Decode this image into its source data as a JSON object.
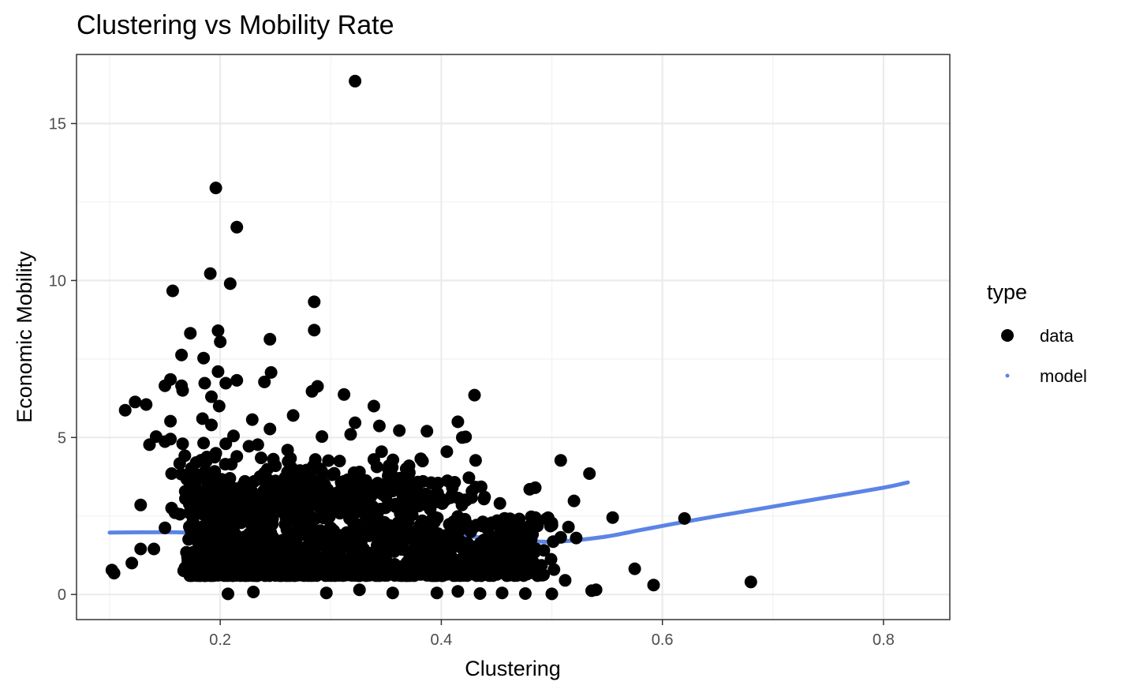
{
  "chart_data": {
    "type": "scatter",
    "title": "Clustering vs Mobility Rate",
    "xlabel": "Clustering",
    "ylabel": "Economic Mobility",
    "xlim": [
      0.07,
      0.86
    ],
    "ylim": [
      -0.8,
      17.2
    ],
    "x_ticks": [
      0.2,
      0.4,
      0.6,
      0.8
    ],
    "x_tick_labels": [
      "0.2",
      "0.4",
      "0.6",
      "0.8"
    ],
    "y_ticks": [
      0,
      5,
      10,
      15
    ],
    "y_tick_labels": [
      "0",
      "5",
      "10",
      "15"
    ],
    "grid": true,
    "legend": {
      "title": "type",
      "placement": "right",
      "entries": [
        {
          "label": "data",
          "marker": "point",
          "color": "#000000"
        },
        {
          "label": "model",
          "marker": "small-point",
          "color": "#5b84e6"
        }
      ]
    },
    "series": [
      {
        "name": "data",
        "kind": "points",
        "color": "#000000",
        "points": [
          [
            0.322,
            16.35
          ],
          [
            0.196,
            12.95
          ],
          [
            0.215,
            11.7
          ],
          [
            0.191,
            10.22
          ],
          [
            0.209,
            9.9
          ],
          [
            0.157,
            9.67
          ],
          [
            0.285,
            9.32
          ],
          [
            0.198,
            8.4
          ],
          [
            0.285,
            8.42
          ],
          [
            0.173,
            8.32
          ],
          [
            0.245,
            8.13
          ],
          [
            0.2,
            8.05
          ],
          [
            0.165,
            7.63
          ],
          [
            0.185,
            7.53
          ],
          [
            0.198,
            7.1
          ],
          [
            0.246,
            7.07
          ],
          [
            0.215,
            6.82
          ],
          [
            0.205,
            6.73
          ],
          [
            0.24,
            6.77
          ],
          [
            0.186,
            6.73
          ],
          [
            0.155,
            6.85
          ],
          [
            0.165,
            6.65
          ],
          [
            0.15,
            6.65
          ],
          [
            0.166,
            6.5
          ],
          [
            0.288,
            6.63
          ],
          [
            0.283,
            6.47
          ],
          [
            0.312,
            6.37
          ],
          [
            0.43,
            6.35
          ],
          [
            0.192,
            6.3
          ],
          [
            0.199,
            6.0
          ],
          [
            0.339,
            6.0
          ],
          [
            0.114,
            5.87
          ],
          [
            0.123,
            6.13
          ],
          [
            0.133,
            6.05
          ],
          [
            0.266,
            5.7
          ],
          [
            0.155,
            5.52
          ],
          [
            0.184,
            5.6
          ],
          [
            0.229,
            5.57
          ],
          [
            0.322,
            5.47
          ],
          [
            0.415,
            5.5
          ],
          [
            0.192,
            5.4
          ],
          [
            0.344,
            5.37
          ],
          [
            0.245,
            5.27
          ],
          [
            0.362,
            5.22
          ],
          [
            0.387,
            5.2
          ],
          [
            0.318,
            5.1
          ],
          [
            0.212,
            5.05
          ],
          [
            0.292,
            5.03
          ],
          [
            0.419,
            5.0
          ],
          [
            0.422,
            5.02
          ],
          [
            0.142,
            5.03
          ],
          [
            0.15,
            4.87
          ],
          [
            0.155,
            4.95
          ],
          [
            0.136,
            4.77
          ],
          [
            0.166,
            4.8
          ],
          [
            0.185,
            4.82
          ],
          [
            0.205,
            4.8
          ],
          [
            0.226,
            4.72
          ],
          [
            0.234,
            4.77
          ],
          [
            0.261,
            4.6
          ],
          [
            0.346,
            4.55
          ],
          [
            0.405,
            4.55
          ],
          [
            0.196,
            4.5
          ],
          [
            0.215,
            4.4
          ],
          [
            0.237,
            4.35
          ],
          [
            0.168,
            4.42
          ],
          [
            0.286,
            4.3
          ],
          [
            0.308,
            4.25
          ],
          [
            0.339,
            4.3
          ],
          [
            0.383,
            4.25
          ],
          [
            0.431,
            4.27
          ],
          [
            0.508,
            4.27
          ],
          [
            0.21,
            4.15
          ],
          [
            0.25,
            4.1
          ],
          [
            0.174,
            4.02
          ],
          [
            0.355,
            4.05
          ],
          [
            0.272,
            3.95
          ],
          [
            0.326,
            3.9
          ],
          [
            0.195,
            3.92
          ],
          [
            0.534,
            3.85
          ],
          [
            0.156,
            3.85
          ],
          [
            0.263,
            3.72
          ],
          [
            0.237,
            3.67
          ],
          [
            0.397,
            3.55
          ],
          [
            0.425,
            3.72
          ],
          [
            0.356,
            3.77
          ],
          [
            0.485,
            3.4
          ],
          [
            0.48,
            3.35
          ],
          [
            0.41,
            3.4
          ],
          [
            0.215,
            3.2
          ],
          [
            0.173,
            3.1
          ],
          [
            0.453,
            2.9
          ],
          [
            0.52,
            2.98
          ],
          [
            0.128,
            2.85
          ],
          [
            0.156,
            2.75
          ],
          [
            0.555,
            2.45
          ],
          [
            0.62,
            2.42
          ],
          [
            0.485,
            2.45
          ],
          [
            0.5,
            2.28
          ],
          [
            0.515,
            2.15
          ],
          [
            0.15,
            2.12
          ],
          [
            0.508,
            1.82
          ],
          [
            0.522,
            1.8
          ],
          [
            0.128,
            1.45
          ],
          [
            0.14,
            1.45
          ],
          [
            0.12,
            1.0
          ],
          [
            0.102,
            0.78
          ],
          [
            0.104,
            0.68
          ],
          [
            0.575,
            0.82
          ],
          [
            0.592,
            0.3
          ],
          [
            0.68,
            0.4
          ],
          [
            0.54,
            0.15
          ],
          [
            0.536,
            0.12
          ],
          [
            0.512,
            0.45
          ],
          [
            0.5,
            0.02
          ],
          [
            0.476,
            0.03
          ],
          [
            0.455,
            0.05
          ],
          [
            0.435,
            0.03
          ],
          [
            0.415,
            0.1
          ],
          [
            0.396,
            0.05
          ],
          [
            0.356,
            0.05
          ],
          [
            0.296,
            0.05
          ],
          [
            0.207,
            0.02
          ],
          [
            0.23,
            0.08
          ],
          [
            0.326,
            0.15
          ]
        ]
      },
      {
        "name": "model",
        "kind": "line",
        "color": "#5b84e6",
        "points": [
          [
            0.1,
            1.97
          ],
          [
            0.13,
            1.98
          ],
          [
            0.16,
            1.98
          ],
          [
            0.19,
            1.93
          ],
          [
            0.22,
            1.8
          ],
          [
            0.245,
            1.75
          ],
          [
            0.27,
            1.82
          ],
          [
            0.3,
            1.95
          ],
          [
            0.33,
            2.01
          ],
          [
            0.36,
            2.01
          ],
          [
            0.39,
            1.95
          ],
          [
            0.42,
            1.86
          ],
          [
            0.45,
            1.78
          ],
          [
            0.48,
            1.7
          ],
          [
            0.5,
            1.68
          ],
          [
            0.52,
            1.72
          ],
          [
            0.55,
            1.85
          ],
          [
            0.58,
            2.05
          ],
          [
            0.61,
            2.25
          ],
          [
            0.65,
            2.5
          ],
          [
            0.7,
            2.8
          ],
          [
            0.75,
            3.1
          ],
          [
            0.8,
            3.4
          ],
          [
            0.822,
            3.57
          ]
        ]
      }
    ]
  }
}
